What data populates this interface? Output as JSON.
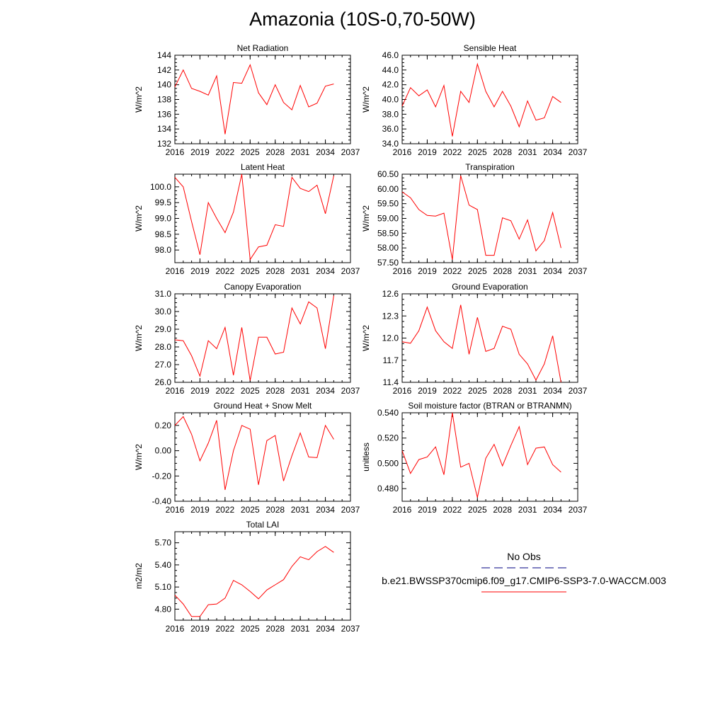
{
  "figure": {
    "title": "Amazonia (10S-0,70-50W)"
  },
  "legend": {
    "items": [
      {
        "label": "No Obs",
        "color": "#000080",
        "dash": true
      },
      {
        "label": "b.e21.BWSSP370cmip6.f09_g17.CMIP6-SSP3-7.0-WACCM.003",
        "color": "#ff0000",
        "dash": false
      }
    ]
  },
  "chart_data": [
    {
      "id": "net-radiation",
      "type": "line",
      "title": "Net Radiation",
      "ylabel": "W/m^2",
      "xlim": [
        2016,
        2037
      ],
      "xticks": [
        2016,
        2019,
        2022,
        2025,
        2028,
        2031,
        2034,
        2037
      ],
      "ylim": [
        132,
        144
      ],
      "yticks": [
        132,
        134,
        136,
        138,
        140,
        142,
        144
      ],
      "ydecimals": 0,
      "series": [
        {
          "name": "b.e21.BWSSP370cmip6.f09_g17.CMIP6-SSP3-7.0-WACCM.003",
          "color": "#ff0000",
          "x": [
            2016,
            2017,
            2018,
            2019,
            2020,
            2021,
            2022,
            2023,
            2024,
            2025,
            2026,
            2027,
            2028,
            2029,
            2030,
            2031,
            2032,
            2033,
            2034,
            2035
          ],
          "y": [
            139.7,
            142.0,
            139.5,
            139.1,
            138.6,
            141.2,
            133.3,
            140.3,
            140.2,
            142.7,
            138.9,
            137.3,
            140.0,
            137.6,
            136.6,
            139.9,
            137.0,
            137.5,
            139.8,
            140.1
          ]
        }
      ]
    },
    {
      "id": "sensible-heat",
      "type": "line",
      "title": "Sensible Heat",
      "ylabel": "W/m^2",
      "xlim": [
        2016,
        2037
      ],
      "xticks": [
        2016,
        2019,
        2022,
        2025,
        2028,
        2031,
        2034,
        2037
      ],
      "ylim": [
        34,
        46
      ],
      "yticks": [
        34,
        36,
        38,
        40,
        42,
        44,
        46
      ],
      "ydecimals": 1,
      "series": [
        {
          "name": "b.e21.BWSSP370cmip6.f09_g17.CMIP6-SSP3-7.0-WACCM.003",
          "color": "#ff0000",
          "x": [
            2016,
            2017,
            2018,
            2019,
            2020,
            2021,
            2022,
            2023,
            2024,
            2025,
            2026,
            2027,
            2028,
            2029,
            2030,
            2031,
            2032,
            2033,
            2034,
            2035
          ],
          "y": [
            39.1,
            41.6,
            40.5,
            41.3,
            39.0,
            41.9,
            35.0,
            41.1,
            39.6,
            44.8,
            41.1,
            39.0,
            41.1,
            39.1,
            36.3,
            39.8,
            37.2,
            37.5,
            40.4,
            39.6
          ]
        }
      ]
    },
    {
      "id": "latent-heat",
      "type": "line",
      "title": "Latent Heat",
      "ylabel": "W/m^2",
      "xlim": [
        2016,
        2037
      ],
      "xticks": [
        2016,
        2019,
        2022,
        2025,
        2028,
        2031,
        2034,
        2037
      ],
      "ylim": [
        97.6,
        100.4
      ],
      "yticks": [
        98.0,
        98.5,
        99.0,
        99.5,
        100.0
      ],
      "ydecimals": 1,
      "series": [
        {
          "name": "b.e21.BWSSP370cmip6.f09_g17.CMIP6-SSP3-7.0-WACCM.003",
          "color": "#ff0000",
          "x": [
            2016,
            2017,
            2018,
            2019,
            2020,
            2021,
            2022,
            2023,
            2024,
            2025,
            2026,
            2027,
            2028,
            2029,
            2030,
            2031,
            2032,
            2033,
            2034,
            2035
          ],
          "y": [
            100.3,
            100.0,
            98.9,
            97.85,
            99.5,
            99.0,
            98.55,
            99.2,
            100.4,
            97.7,
            98.1,
            98.15,
            98.8,
            98.75,
            100.3,
            99.95,
            99.85,
            100.05,
            99.15,
            100.35
          ]
        }
      ]
    },
    {
      "id": "transpiration",
      "type": "line",
      "title": "Transpiration",
      "ylabel": "W/m^2",
      "xlim": [
        2016,
        2037
      ],
      "xticks": [
        2016,
        2019,
        2022,
        2025,
        2028,
        2031,
        2034,
        2037
      ],
      "ylim": [
        57.5,
        60.5
      ],
      "yticks": [
        57.5,
        58.0,
        58.5,
        59.0,
        59.5,
        60.0,
        60.5
      ],
      "ydecimals": 2,
      "series": [
        {
          "name": "b.e21.BWSSP370cmip6.f09_g17.CMIP6-SSP3-7.0-WACCM.003",
          "color": "#ff0000",
          "x": [
            2016,
            2017,
            2018,
            2019,
            2020,
            2021,
            2022,
            2023,
            2024,
            2025,
            2026,
            2027,
            2028,
            2029,
            2030,
            2031,
            2032,
            2033,
            2034,
            2035
          ],
          "y": [
            59.9,
            59.7,
            59.3,
            59.1,
            59.08,
            59.18,
            57.6,
            60.45,
            59.45,
            59.3,
            57.75,
            57.75,
            59.02,
            58.92,
            58.3,
            58.95,
            57.9,
            58.25,
            59.2,
            58.0
          ]
        }
      ]
    },
    {
      "id": "canopy-evaporation",
      "type": "line",
      "title": "Canopy Evaporation",
      "ylabel": "W/m^2",
      "xlim": [
        2016,
        2037
      ],
      "xticks": [
        2016,
        2019,
        2022,
        2025,
        2028,
        2031,
        2034,
        2037
      ],
      "ylim": [
        26.0,
        31.0
      ],
      "yticks": [
        26.0,
        27.0,
        28.0,
        29.0,
        30.0,
        31.0
      ],
      "ydecimals": 1,
      "series": [
        {
          "name": "b.e21.BWSSP370cmip6.f09_g17.CMIP6-SSP3-7.0-WACCM.003",
          "color": "#ff0000",
          "x": [
            2016,
            2017,
            2018,
            2019,
            2020,
            2021,
            2022,
            2023,
            2024,
            2025,
            2026,
            2027,
            2028,
            2029,
            2030,
            2031,
            2032,
            2033,
            2034,
            2035
          ],
          "y": [
            28.4,
            28.35,
            27.5,
            26.35,
            28.35,
            27.9,
            29.1,
            26.4,
            29.1,
            26.1,
            28.55,
            28.55,
            27.6,
            27.7,
            30.2,
            29.3,
            30.55,
            30.2,
            27.9,
            30.9
          ]
        }
      ]
    },
    {
      "id": "ground-evaporation",
      "type": "line",
      "title": "Ground Evaporation",
      "ylabel": "W/m^2",
      "xlim": [
        2016,
        2037
      ],
      "xticks": [
        2016,
        2019,
        2022,
        2025,
        2028,
        2031,
        2034,
        2037
      ],
      "ylim": [
        11.4,
        12.6
      ],
      "yticks": [
        11.4,
        11.7,
        12.0,
        12.3,
        12.6
      ],
      "ydecimals": 1,
      "series": [
        {
          "name": "b.e21.BWSSP370cmip6.f09_g17.CMIP6-SSP3-7.0-WACCM.003",
          "color": "#ff0000",
          "x": [
            2016,
            2017,
            2018,
            2019,
            2020,
            2021,
            2022,
            2023,
            2024,
            2025,
            2026,
            2027,
            2028,
            2029,
            2030,
            2031,
            2032,
            2033,
            2034,
            2035
          ],
          "y": [
            11.95,
            11.93,
            12.1,
            12.42,
            12.1,
            11.95,
            11.86,
            12.45,
            11.78,
            12.28,
            11.82,
            11.86,
            12.16,
            12.12,
            11.78,
            11.65,
            11.43,
            11.65,
            12.03,
            11.4
          ]
        }
      ]
    },
    {
      "id": "ground-heat-snow-melt",
      "type": "line",
      "title": "Ground Heat + Snow Melt",
      "ylabel": "W/m^2",
      "xlim": [
        2016,
        2037
      ],
      "xticks": [
        2016,
        2019,
        2022,
        2025,
        2028,
        2031,
        2034,
        2037
      ],
      "ylim": [
        -0.4,
        0.3
      ],
      "yticks": [
        -0.4,
        -0.2,
        0.0,
        0.2
      ],
      "ydecimals": 2,
      "series": [
        {
          "name": "b.e21.BWSSP370cmip6.f09_g17.CMIP6-SSP3-7.0-WACCM.003",
          "color": "#ff0000",
          "x": [
            2016,
            2017,
            2018,
            2019,
            2020,
            2021,
            2022,
            2023,
            2024,
            2025,
            2026,
            2027,
            2028,
            2029,
            2030,
            2031,
            2032,
            2033,
            2034,
            2035
          ],
          "y": [
            0.2,
            0.27,
            0.13,
            -0.08,
            0.06,
            0.24,
            -0.31,
            0.0,
            0.2,
            0.17,
            -0.27,
            0.08,
            0.12,
            -0.24,
            -0.04,
            0.14,
            -0.05,
            -0.055,
            0.2,
            0.09
          ]
        }
      ]
    },
    {
      "id": "soil-moisture-factor",
      "type": "line",
      "title": "Soil moisture factor (BTRAN or BTRANMN)",
      "ylabel": "unitless",
      "xlim": [
        2016,
        2037
      ],
      "xticks": [
        2016,
        2019,
        2022,
        2025,
        2028,
        2031,
        2034,
        2037
      ],
      "ylim": [
        0.47,
        0.54
      ],
      "yticks": [
        0.48,
        0.5,
        0.52,
        0.54
      ],
      "ydecimals": 3,
      "series": [
        {
          "name": "b.e21.BWSSP370cmip6.f09_g17.CMIP6-SSP3-7.0-WACCM.003",
          "color": "#ff0000",
          "x": [
            2016,
            2017,
            2018,
            2019,
            2020,
            2021,
            2022,
            2023,
            2024,
            2025,
            2026,
            2027,
            2028,
            2029,
            2030,
            2031,
            2032,
            2033,
            2034,
            2035
          ],
          "y": [
            0.51,
            0.492,
            0.503,
            0.505,
            0.513,
            0.491,
            0.54,
            0.497,
            0.5,
            0.473,
            0.504,
            0.515,
            0.498,
            0.514,
            0.529,
            0.499,
            0.512,
            0.513,
            0.499,
            0.493
          ]
        }
      ]
    },
    {
      "id": "total-lai",
      "type": "line",
      "title": "Total LAI",
      "ylabel": "m2/m2",
      "xlim": [
        2016,
        2037
      ],
      "xticks": [
        2016,
        2019,
        2022,
        2025,
        2028,
        2031,
        2034,
        2037
      ],
      "ylim": [
        4.65,
        5.85
      ],
      "yticks": [
        4.8,
        5.1,
        5.4,
        5.7
      ],
      "ydecimals": 2,
      "series": [
        {
          "name": "b.e21.BWSSP370cmip6.f09_g17.CMIP6-SSP3-7.0-WACCM.003",
          "color": "#ff0000",
          "x": [
            2016,
            2017,
            2018,
            2019,
            2020,
            2021,
            2022,
            2023,
            2024,
            2025,
            2026,
            2027,
            2028,
            2029,
            2030,
            2031,
            2032,
            2033,
            2034,
            2035
          ],
          "y": [
            4.99,
            4.87,
            4.7,
            4.7,
            4.86,
            4.87,
            4.95,
            5.19,
            5.13,
            5.04,
            4.94,
            5.06,
            5.13,
            5.2,
            5.38,
            5.51,
            5.47,
            5.58,
            5.65,
            5.57
          ]
        }
      ]
    }
  ]
}
